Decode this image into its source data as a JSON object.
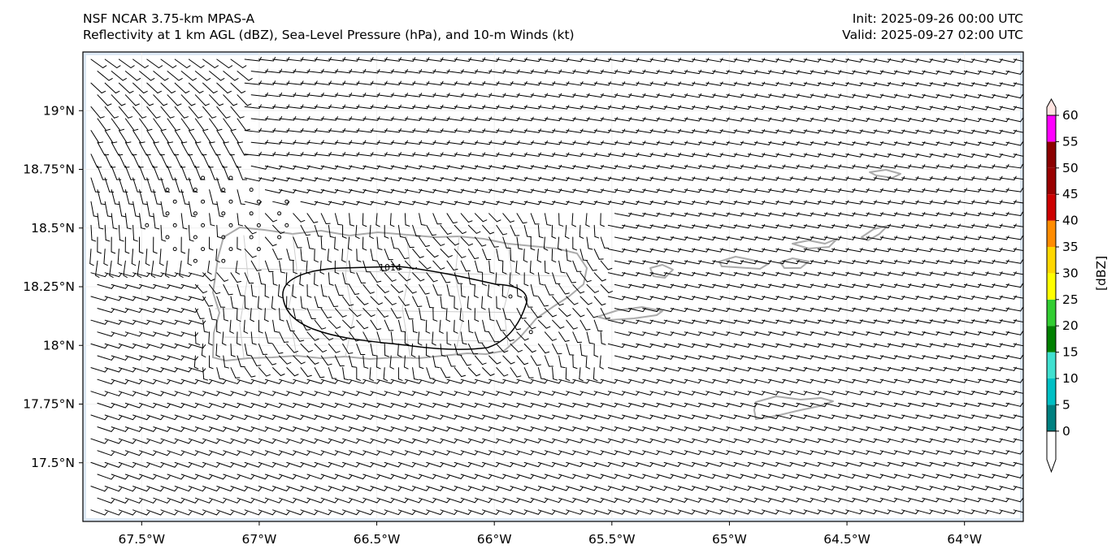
{
  "title": {
    "left_line1": "NSF NCAR 3.75-km MPAS-A",
    "left_line2": "Reflectivity at 1 km AGL (dBZ), Sea-Level Pressure (hPa), and 10-m Winds (kt)",
    "right_line1": "Init: 2025-09-26 00:00 UTC",
    "right_line2": "Valid: 2025-09-27 02:00 UTC"
  },
  "map": {
    "lon_range": [
      -67.75,
      -63.75
    ],
    "lat_range": [
      17.25,
      19.25
    ],
    "x_ticks": [
      {
        "lon": -67.5,
        "label": "67.5°W"
      },
      {
        "lon": -67.0,
        "label": "67°W"
      },
      {
        "lon": -66.5,
        "label": "66.5°W"
      },
      {
        "lon": -66.0,
        "label": "66°W"
      },
      {
        "lon": -65.5,
        "label": "65.5°W"
      },
      {
        "lon": -65.0,
        "label": "65°W"
      },
      {
        "lon": -64.5,
        "label": "64.5°W"
      },
      {
        "lon": -64.0,
        "label": "64°W"
      }
    ],
    "y_ticks": [
      {
        "lat": 19.0,
        "label": "19°N"
      },
      {
        "lat": 18.75,
        "label": "18.75°N"
      },
      {
        "lat": 18.5,
        "label": "18.5°N"
      },
      {
        "lat": 18.25,
        "label": "18.25°N"
      },
      {
        "lat": 18.0,
        "label": "18°N"
      },
      {
        "lat": 17.75,
        "label": "17.75°N"
      },
      {
        "lat": 17.5,
        "label": "17.5°N"
      }
    ],
    "isobar": {
      "value": 1014,
      "label": "1014",
      "color": "#000000"
    },
    "coastline_color": "#a9a9a9",
    "barb_color": "#000000"
  },
  "colorbar": {
    "label": "[dBZ]",
    "ticks": [
      "0",
      "5",
      "10",
      "15",
      "20",
      "25",
      "30",
      "35",
      "40",
      "45",
      "50",
      "55",
      "60"
    ],
    "bins": [
      {
        "from": -5,
        "to": 0,
        "color": "#ffffff"
      },
      {
        "from": 0,
        "to": 5,
        "color": "#008080"
      },
      {
        "from": 5,
        "to": 10,
        "color": "#00bfc4"
      },
      {
        "from": 10,
        "to": 15,
        "color": "#40e0d0"
      },
      {
        "from": 15,
        "to": 20,
        "color": "#008000"
      },
      {
        "from": 20,
        "to": 25,
        "color": "#32cd32"
      },
      {
        "from": 25,
        "to": 30,
        "color": "#ffff00"
      },
      {
        "from": 30,
        "to": 35,
        "color": "#ffd700"
      },
      {
        "from": 35,
        "to": 40,
        "color": "#ff8c00"
      },
      {
        "from": 40,
        "to": 45,
        "color": "#cc0000"
      },
      {
        "from": 45,
        "to": 50,
        "color": "#990000"
      },
      {
        "from": 50,
        "to": 55,
        "color": "#8b0000"
      },
      {
        "from": 55,
        "to": 60,
        "color": "#ff00ff"
      },
      {
        "from": 60,
        "to": 65,
        "color": "#ffe4e1"
      }
    ]
  }
}
